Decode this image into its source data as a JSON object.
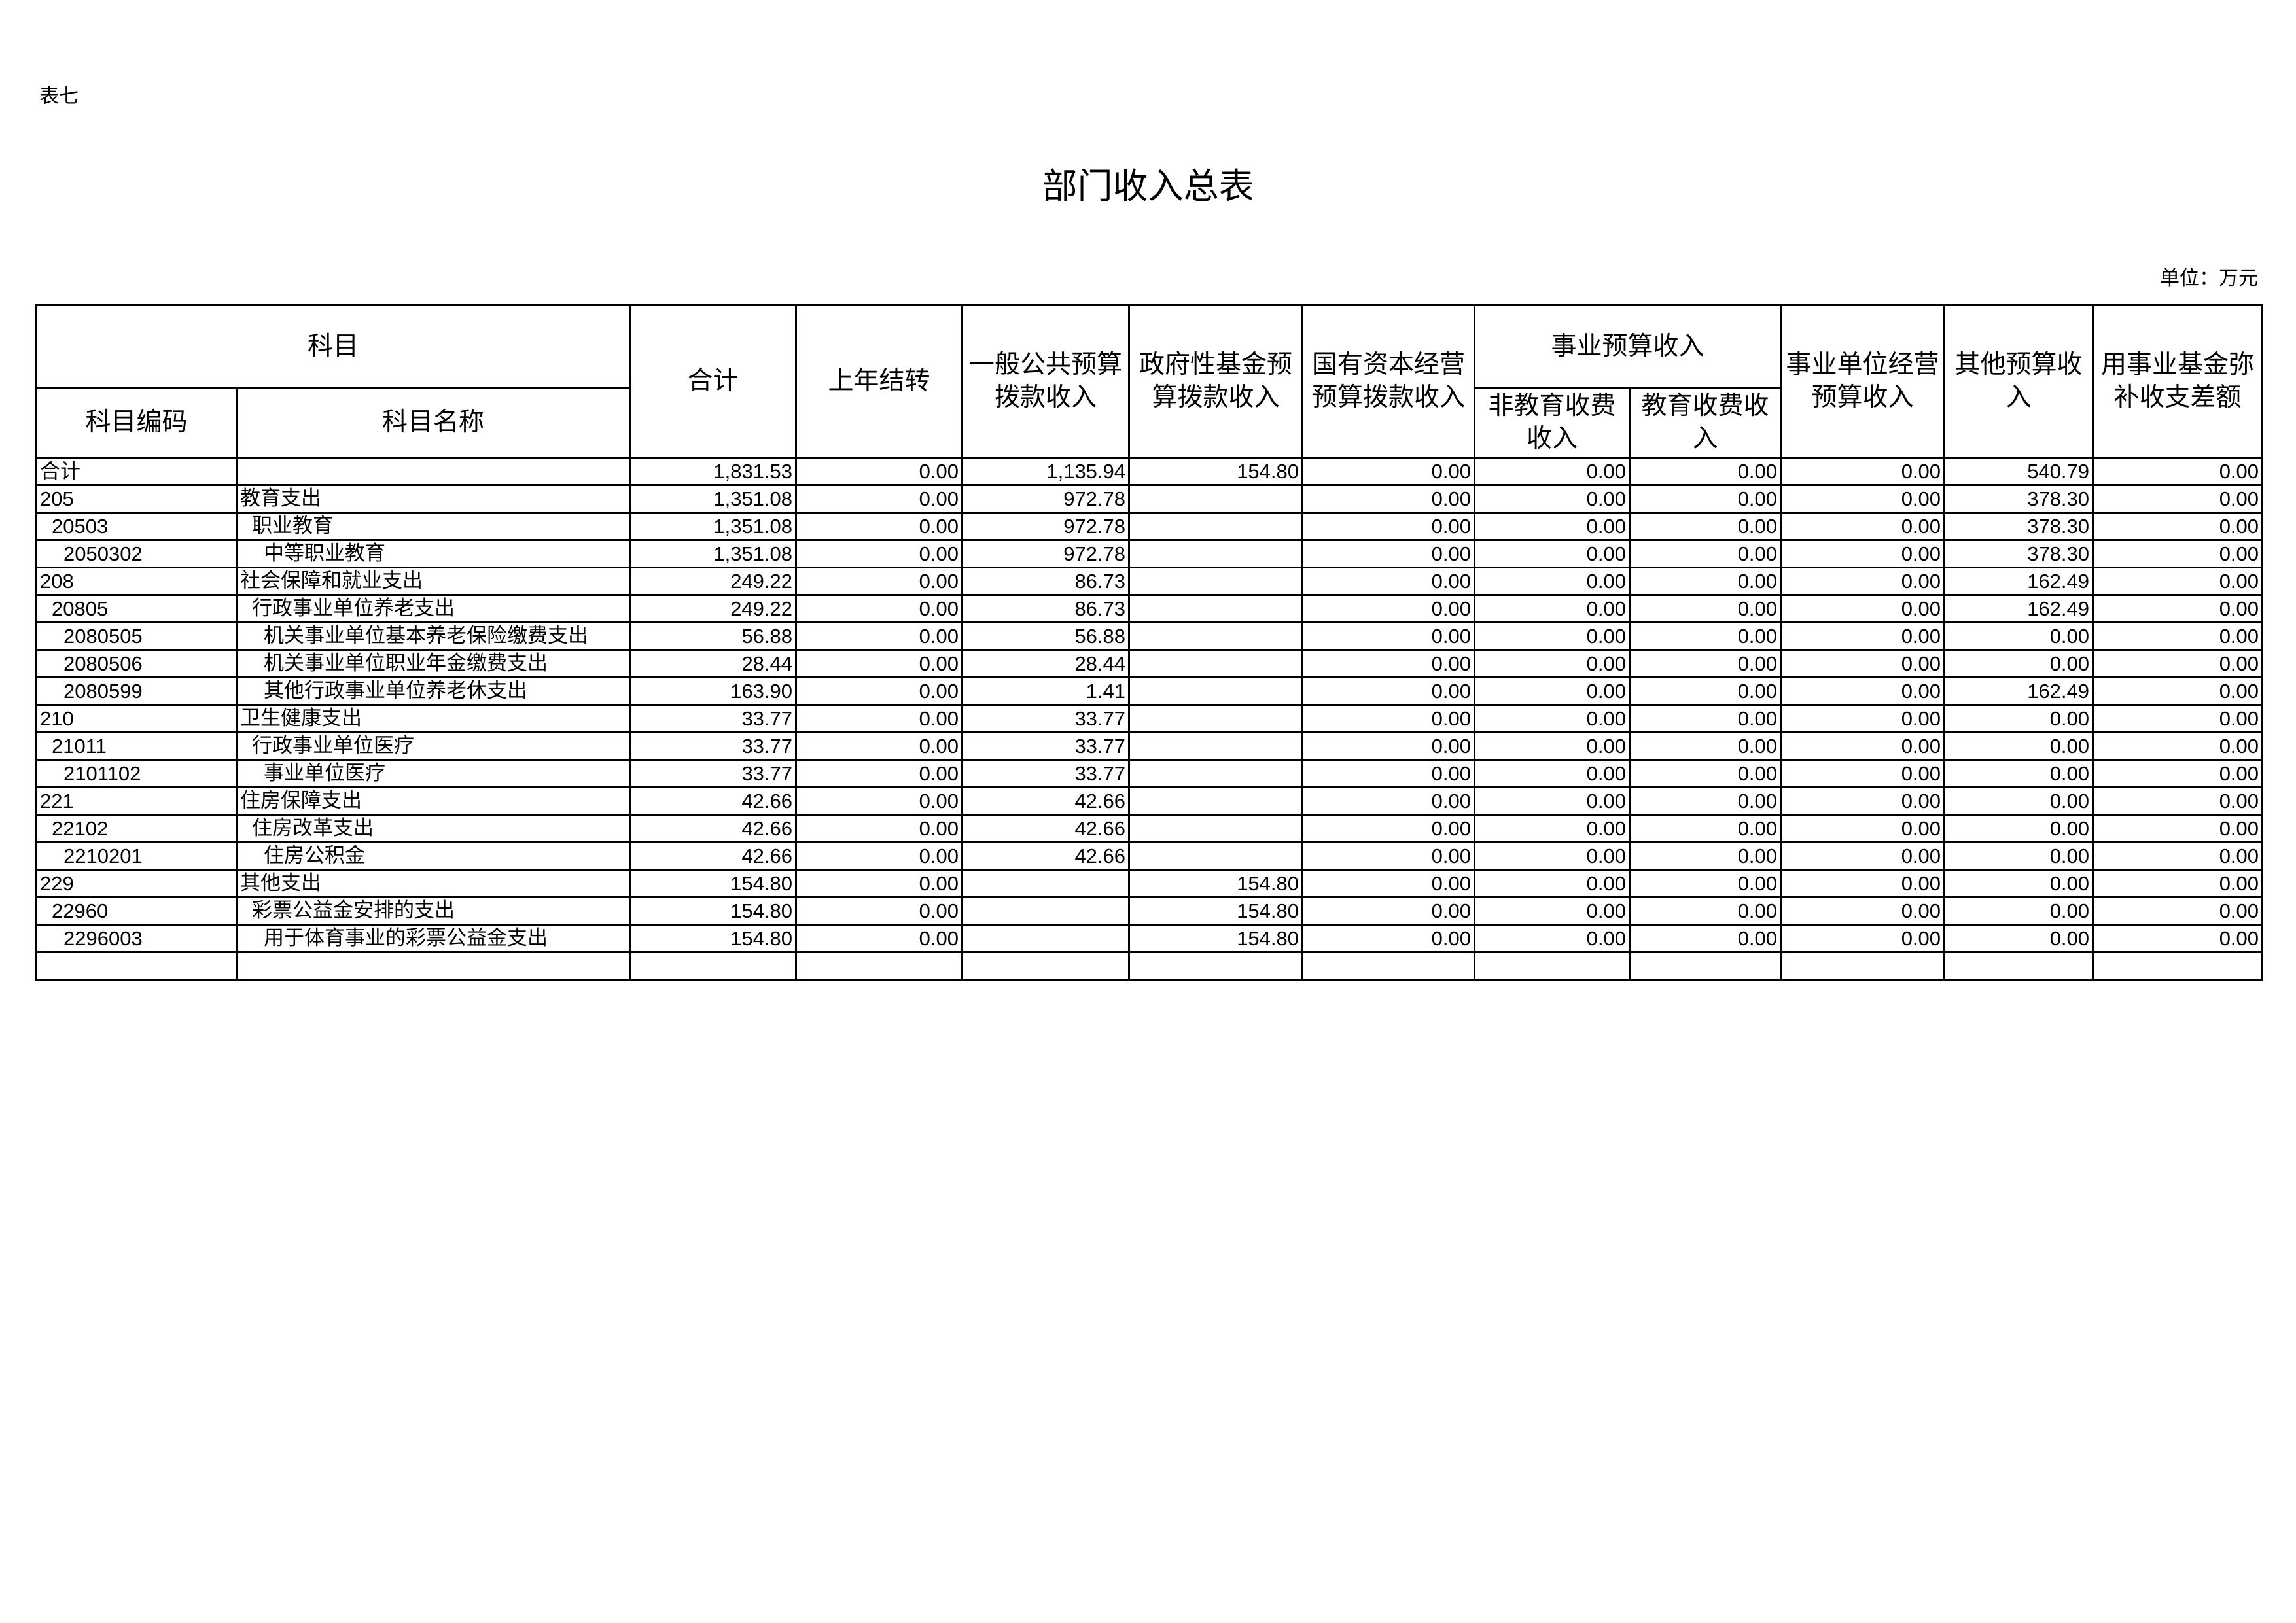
{
  "table_no": "表七",
  "title": "部门收入总表",
  "unit": "单位：万元",
  "headers": {
    "subject": "科目",
    "code": "科目编码",
    "name": "科目名称",
    "total": "合计",
    "carryover": "上年结转",
    "general": "一般公共预算拨款收入",
    "gov_fund": "政府性基金预算拨款收入",
    "state_capital": "国有资本经营预算拨款收入",
    "business": "事业预算收入",
    "non_edu": "非教育收费收入",
    "edu": "教育收费收入",
    "operating": "事业单位经营预算收入",
    "other": "其他预算收入",
    "fund_fill": "用事业基金弥补收支差额"
  },
  "rows": [
    {
      "code": "合计",
      "name": "",
      "level": 0,
      "v": [
        "1,831.53",
        "0.00",
        "1,135.94",
        "154.80",
        "0.00",
        "0.00",
        "0.00",
        "0.00",
        "540.79",
        "0.00"
      ]
    },
    {
      "code": "205",
      "name": "教育支出",
      "level": 0,
      "v": [
        "1,351.08",
        "0.00",
        "972.78",
        "",
        "0.00",
        "0.00",
        "0.00",
        "0.00",
        "378.30",
        "0.00"
      ]
    },
    {
      "code": "20503",
      "name": "职业教育",
      "level": 1,
      "v": [
        "1,351.08",
        "0.00",
        "972.78",
        "",
        "0.00",
        "0.00",
        "0.00",
        "0.00",
        "378.30",
        "0.00"
      ]
    },
    {
      "code": "2050302",
      "name": "中等职业教育",
      "level": 2,
      "v": [
        "1,351.08",
        "0.00",
        "972.78",
        "",
        "0.00",
        "0.00",
        "0.00",
        "0.00",
        "378.30",
        "0.00"
      ]
    },
    {
      "code": "208",
      "name": "社会保障和就业支出",
      "level": 0,
      "v": [
        "249.22",
        "0.00",
        "86.73",
        "",
        "0.00",
        "0.00",
        "0.00",
        "0.00",
        "162.49",
        "0.00"
      ]
    },
    {
      "code": "20805",
      "name": "行政事业单位养老支出",
      "level": 1,
      "v": [
        "249.22",
        "0.00",
        "86.73",
        "",
        "0.00",
        "0.00",
        "0.00",
        "0.00",
        "162.49",
        "0.00"
      ]
    },
    {
      "code": "2080505",
      "name": "机关事业单位基本养老保险缴费支出",
      "level": 2,
      "v": [
        "56.88",
        "0.00",
        "56.88",
        "",
        "0.00",
        "0.00",
        "0.00",
        "0.00",
        "0.00",
        "0.00"
      ]
    },
    {
      "code": "2080506",
      "name": "机关事业单位职业年金缴费支出",
      "level": 2,
      "v": [
        "28.44",
        "0.00",
        "28.44",
        "",
        "0.00",
        "0.00",
        "0.00",
        "0.00",
        "0.00",
        "0.00"
      ]
    },
    {
      "code": "2080599",
      "name": "其他行政事业单位养老休支出",
      "level": 2,
      "v": [
        "163.90",
        "0.00",
        "1.41",
        "",
        "0.00",
        "0.00",
        "0.00",
        "0.00",
        "162.49",
        "0.00"
      ]
    },
    {
      "code": "210",
      "name": "卫生健康支出",
      "level": 0,
      "v": [
        "33.77",
        "0.00",
        "33.77",
        "",
        "0.00",
        "0.00",
        "0.00",
        "0.00",
        "0.00",
        "0.00"
      ]
    },
    {
      "code": "21011",
      "name": "行政事业单位医疗",
      "level": 1,
      "v": [
        "33.77",
        "0.00",
        "33.77",
        "",
        "0.00",
        "0.00",
        "0.00",
        "0.00",
        "0.00",
        "0.00"
      ]
    },
    {
      "code": "2101102",
      "name": "事业单位医疗",
      "level": 2,
      "v": [
        "33.77",
        "0.00",
        "33.77",
        "",
        "0.00",
        "0.00",
        "0.00",
        "0.00",
        "0.00",
        "0.00"
      ]
    },
    {
      "code": "221",
      "name": "住房保障支出",
      "level": 0,
      "v": [
        "42.66",
        "0.00",
        "42.66",
        "",
        "0.00",
        "0.00",
        "0.00",
        "0.00",
        "0.00",
        "0.00"
      ]
    },
    {
      "code": "22102",
      "name": "住房改革支出",
      "level": 1,
      "v": [
        "42.66",
        "0.00",
        "42.66",
        "",
        "0.00",
        "0.00",
        "0.00",
        "0.00",
        "0.00",
        "0.00"
      ]
    },
    {
      "code": "2210201",
      "name": "住房公积金",
      "level": 2,
      "v": [
        "42.66",
        "0.00",
        "42.66",
        "",
        "0.00",
        "0.00",
        "0.00",
        "0.00",
        "0.00",
        "0.00"
      ]
    },
    {
      "code": "229",
      "name": "其他支出",
      "level": 0,
      "v": [
        "154.80",
        "0.00",
        "",
        "154.80",
        "0.00",
        "0.00",
        "0.00",
        "0.00",
        "0.00",
        "0.00"
      ]
    },
    {
      "code": "22960",
      "name": "彩票公益金安排的支出",
      "level": 1,
      "v": [
        "154.80",
        "0.00",
        "",
        "154.80",
        "0.00",
        "0.00",
        "0.00",
        "0.00",
        "0.00",
        "0.00"
      ]
    },
    {
      "code": "2296003",
      "name": "用于体育事业的彩票公益金支出",
      "level": 2,
      "v": [
        "154.80",
        "0.00",
        "",
        "154.80",
        "0.00",
        "0.00",
        "0.00",
        "0.00",
        "0.00",
        "0.00"
      ]
    }
  ]
}
